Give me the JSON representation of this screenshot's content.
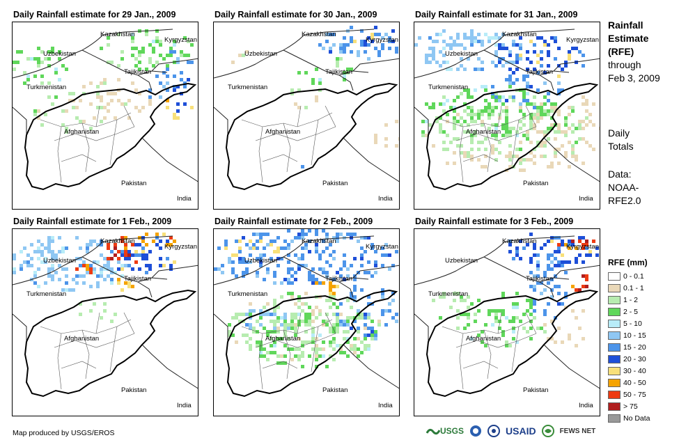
{
  "panels": [
    {
      "title": "Daily Rainfall estimate for 29 Jan., 2009"
    },
    {
      "title": "Daily Rainfall estimate for 30 Jan., 2009"
    },
    {
      "title": "Daily Rainfall estimate for 31 Jan., 2009"
    },
    {
      "title": "Daily Rainfall estimate for 1 Feb., 2009"
    },
    {
      "title": "Daily Rainfall estimate for 2 Feb., 2009"
    },
    {
      "title": "Daily Rainfall estimate for 3 Feb., 2009"
    }
  ],
  "places": {
    "kazakhstan": "Kazakhstan",
    "kyrgyzstan": "Kyrgyzstan",
    "uzbekistan": "Uzbekistan",
    "tajikistan": "Tajikistan",
    "turkmenistan": "Turkmenistan",
    "afghanistan": "Afghanistan",
    "pakistan": "Pakistan",
    "india": "India"
  },
  "side": {
    "title_line1": "Rainfall",
    "title_line2": "Estimate",
    "title_line3": "(RFE)",
    "through": "through",
    "through_date": "Feb 3, 2009",
    "daily1": "Daily",
    "daily2": "Totals",
    "data1": "Data:",
    "data2": "NOAA-",
    "data3": "RFE2.0"
  },
  "legend": {
    "title": "RFE (mm)",
    "items": [
      {
        "label": "0 - 0.1",
        "color": "#ffffff"
      },
      {
        "label": "0.1 - 1",
        "color": "#e9d8b8"
      },
      {
        "label": "1 - 2",
        "color": "#b7ecb0"
      },
      {
        "label": "2 - 5",
        "color": "#5fd75a"
      },
      {
        "label": "5 - 10",
        "color": "#b8ecf8"
      },
      {
        "label": "10 - 15",
        "color": "#8fc7f3"
      },
      {
        "label": "15 - 20",
        "color": "#4c94ea"
      },
      {
        "label": "20 - 30",
        "color": "#1e4fd8"
      },
      {
        "label": "30 - 40",
        "color": "#f8e07a"
      },
      {
        "label": "40 - 50",
        "color": "#f5a300"
      },
      {
        "label": "50 - 75",
        "color": "#ee3b12"
      },
      {
        "label": "> 75",
        "color": "#b01e1e"
      },
      {
        "label": "No Data",
        "color": "#999999"
      }
    ]
  },
  "footer": {
    "credit": "Map produced by USGS/EROS"
  },
  "logos": {
    "usgs": "USGS",
    "usaid": "USAID",
    "fewsnet": "FEWS NET"
  }
}
